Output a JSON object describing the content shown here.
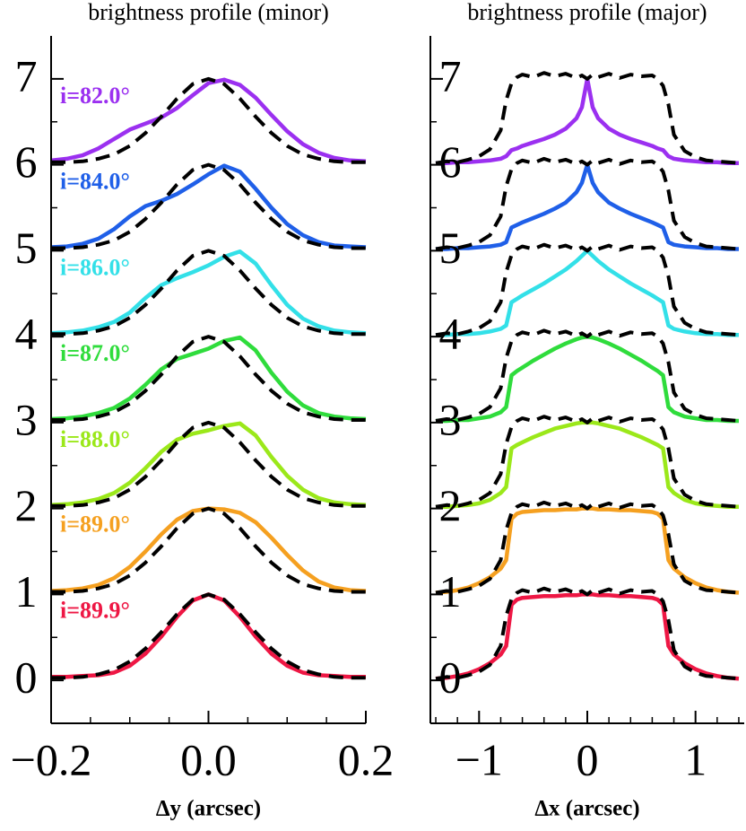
{
  "chart_data": [
    {
      "type": "line",
      "title": "brightness profile (minor)",
      "xlabel": "Δy (arcsec)",
      "xlim": [
        -0.2,
        0.2
      ],
      "ylim": [
        -0.5,
        7.5
      ],
      "xticks": [
        {
          "value": -0.2,
          "label": "−0.2"
        },
        {
          "value": 0,
          "label": "0.0"
        },
        0.2
      ],
      "xminorticks": [
        -0.15,
        -0.1,
        -0.05,
        0.05,
        0.1,
        0.15
      ],
      "yticks": [
        0,
        1,
        2,
        3,
        4,
        5,
        6,
        7
      ],
      "yminorticks": [
        0.5,
        1.5,
        2.5,
        3.5,
        4.5,
        5.5,
        6.5
      ],
      "x": [
        -0.2,
        -0.18,
        -0.16,
        -0.14,
        -0.12,
        -0.1,
        -0.08,
        -0.06,
        -0.04,
        -0.02,
        0,
        0.02,
        0.04,
        0.06,
        0.08,
        0.1,
        0.12,
        0.14,
        0.16,
        0.18,
        0.2
      ],
      "series": [
        {
          "name": "i=82.0°",
          "color": "#9b30f0",
          "values": [
            6.05,
            6.07,
            6.11,
            6.19,
            6.3,
            6.41,
            6.48,
            6.55,
            6.66,
            6.81,
            6.95,
            6.99,
            6.93,
            6.78,
            6.58,
            6.39,
            6.24,
            6.14,
            6.08,
            6.05,
            6.04
          ]
        },
        {
          "name": "i=84.0°",
          "color": "#1f5fe8",
          "values": [
            5.04,
            5.05,
            5.08,
            5.14,
            5.25,
            5.4,
            5.52,
            5.58,
            5.66,
            5.77,
            5.89,
            5.99,
            5.92,
            5.72,
            5.5,
            5.31,
            5.18,
            5.1,
            5.06,
            5.05,
            5.04
          ]
        },
        {
          "name": "i=86.0°",
          "color": "#33e0e8",
          "values": [
            4.04,
            4.05,
            4.07,
            4.11,
            4.17,
            4.28,
            4.45,
            4.6,
            4.68,
            4.75,
            4.83,
            4.93,
            4.99,
            4.85,
            4.6,
            4.37,
            4.21,
            4.12,
            4.07,
            4.05,
            4.04
          ]
        },
        {
          "name": "i=87.0°",
          "color": "#2fdc3c",
          "values": [
            3.04,
            3.05,
            3.07,
            3.11,
            3.17,
            3.28,
            3.44,
            3.62,
            3.74,
            3.8,
            3.86,
            3.95,
            3.99,
            3.84,
            3.58,
            3.36,
            3.2,
            3.11,
            3.07,
            3.05,
            3.04
          ]
        },
        {
          "name": "i=88.0°",
          "color": "#9be81a",
          "values": [
            2.04,
            2.05,
            2.07,
            2.11,
            2.18,
            2.3,
            2.47,
            2.66,
            2.8,
            2.87,
            2.91,
            2.96,
            2.99,
            2.85,
            2.6,
            2.38,
            2.22,
            2.12,
            2.07,
            2.05,
            2.04
          ]
        },
        {
          "name": "i=89.0°",
          "color": "#f5a020",
          "values": [
            1.04,
            1.05,
            1.07,
            1.11,
            1.19,
            1.32,
            1.5,
            1.7,
            1.87,
            1.97,
            2.0,
            1.99,
            1.95,
            1.84,
            1.66,
            1.46,
            1.28,
            1.15,
            1.08,
            1.05,
            1.04
          ]
        },
        {
          "name": "i=89.9°",
          "color": "#ee1744",
          "values": [
            0.04,
            0.04,
            0.05,
            0.06,
            0.09,
            0.17,
            0.31,
            0.51,
            0.74,
            0.93,
            1.0,
            0.93,
            0.74,
            0.51,
            0.31,
            0.17,
            0.09,
            0.06,
            0.05,
            0.04,
            0.04
          ]
        },
        {
          "color": "#000000",
          "dash": true,
          "values": [
            6.03,
            6.03,
            6.04,
            6.07,
            6.12,
            6.22,
            6.37,
            6.56,
            6.77,
            6.94,
            7.0,
            6.94,
            6.77,
            6.56,
            6.37,
            6.22,
            6.12,
            6.07,
            6.04,
            6.03,
            6.03
          ]
        },
        {
          "color": "#000000",
          "dash": true,
          "values": [
            5.03,
            5.03,
            5.04,
            5.07,
            5.12,
            5.22,
            5.37,
            5.56,
            5.77,
            5.94,
            6.0,
            5.94,
            5.77,
            5.56,
            5.37,
            5.22,
            5.12,
            5.07,
            5.04,
            5.03,
            5.03
          ]
        },
        {
          "color": "#000000",
          "dash": true,
          "values": [
            4.03,
            4.03,
            4.04,
            4.07,
            4.12,
            4.22,
            4.37,
            4.56,
            4.77,
            4.94,
            5.0,
            4.94,
            4.77,
            4.56,
            4.37,
            4.22,
            4.12,
            4.07,
            4.04,
            4.03,
            4.03
          ]
        },
        {
          "color": "#000000",
          "dash": true,
          "values": [
            3.03,
            3.03,
            3.04,
            3.07,
            3.12,
            3.22,
            3.37,
            3.56,
            3.77,
            3.94,
            4.0,
            3.94,
            3.77,
            3.56,
            3.37,
            3.22,
            3.12,
            3.07,
            3.04,
            3.03,
            3.03
          ]
        },
        {
          "color": "#000000",
          "dash": true,
          "values": [
            2.03,
            2.03,
            2.04,
            2.07,
            2.12,
            2.22,
            2.37,
            2.56,
            2.77,
            2.94,
            3.0,
            2.94,
            2.77,
            2.56,
            2.37,
            2.22,
            2.12,
            2.07,
            2.04,
            2.03,
            2.03
          ]
        },
        {
          "color": "#000000",
          "dash": true,
          "values": [
            1.03,
            1.03,
            1.04,
            1.07,
            1.12,
            1.22,
            1.37,
            1.56,
            1.77,
            1.94,
            2.0,
            1.94,
            1.77,
            1.56,
            1.37,
            1.22,
            1.12,
            1.07,
            1.04,
            1.03,
            1.03
          ]
        },
        {
          "color": "#000000",
          "dash": true,
          "values": [
            0.03,
            0.03,
            0.04,
            0.07,
            0.12,
            0.22,
            0.37,
            0.56,
            0.77,
            0.94,
            1.0,
            0.94,
            0.77,
            0.56,
            0.37,
            0.22,
            0.12,
            0.07,
            0.04,
            0.03,
            0.03
          ]
        }
      ]
    },
    {
      "type": "line",
      "title": "brightness profile (major)",
      "xlabel": "Δx (arcsec)",
      "xlim": [
        -1.45,
        1.45
      ],
      "ylim": [
        -0.5,
        7.5
      ],
      "xticks": [
        {
          "value": -1,
          "label": "−1"
        },
        0,
        1
      ],
      "xminorticks": [
        -1.4,
        -1.2,
        -0.8,
        -0.6,
        -0.4,
        -0.2,
        0.2,
        0.4,
        0.6,
        0.8,
        1.2,
        1.4
      ],
      "yticks": [
        0,
        1,
        2,
        3,
        4,
        5,
        6,
        7
      ],
      "yminorticks": [
        0.5,
        1.5,
        2.5,
        3.5,
        4.5,
        5.5,
        6.5
      ],
      "x": [
        -1.4,
        -1.3,
        -1.2,
        -1.1,
        -1.0,
        -0.9,
        -0.8,
        -0.75,
        -0.7,
        -0.65,
        -0.6,
        -0.5,
        -0.4,
        -0.3,
        -0.2,
        -0.1,
        -0.05,
        0,
        0.05,
        0.1,
        0.2,
        0.3,
        0.4,
        0.5,
        0.6,
        0.65,
        0.7,
        0.75,
        0.8,
        0.9,
        1.0,
        1.1,
        1.2,
        1.3,
        1.4
      ],
      "series": [
        {
          "color": "#9b30f0",
          "values": [
            6.02,
            6.02,
            6.03,
            6.03,
            6.04,
            6.05,
            6.07,
            6.1,
            6.17,
            6.19,
            6.22,
            6.26,
            6.3,
            6.35,
            6.42,
            6.54,
            6.67,
            7.0,
            6.67,
            6.54,
            6.42,
            6.35,
            6.3,
            6.26,
            6.22,
            6.19,
            6.17,
            6.1,
            6.07,
            6.05,
            6.04,
            6.03,
            6.03,
            6.02,
            6.02
          ]
        },
        {
          "color": "#1f5fe8",
          "values": [
            5.02,
            5.02,
            5.03,
            5.03,
            5.04,
            5.05,
            5.07,
            5.1,
            5.27,
            5.3,
            5.33,
            5.38,
            5.43,
            5.49,
            5.56,
            5.68,
            5.79,
            6.0,
            5.79,
            5.68,
            5.56,
            5.49,
            5.43,
            5.38,
            5.33,
            5.3,
            5.27,
            5.1,
            5.07,
            5.05,
            5.04,
            5.03,
            5.03,
            5.02,
            5.02
          ]
        },
        {
          "color": "#33e0e8",
          "values": [
            4.02,
            4.02,
            4.03,
            4.03,
            4.04,
            4.06,
            4.09,
            4.13,
            4.4,
            4.44,
            4.48,
            4.55,
            4.62,
            4.7,
            4.78,
            4.88,
            4.94,
            5.0,
            4.94,
            4.88,
            4.78,
            4.7,
            4.62,
            4.55,
            4.48,
            4.44,
            4.4,
            4.13,
            4.09,
            4.06,
            4.04,
            4.03,
            4.03,
            4.02,
            4.02
          ]
        },
        {
          "color": "#2fdc3c",
          "values": [
            3.02,
            3.02,
            3.03,
            3.03,
            3.05,
            3.07,
            3.12,
            3.18,
            3.55,
            3.6,
            3.64,
            3.72,
            3.79,
            3.86,
            3.92,
            3.97,
            3.99,
            4.0,
            3.99,
            3.97,
            3.92,
            3.86,
            3.79,
            3.72,
            3.64,
            3.6,
            3.55,
            3.18,
            3.12,
            3.07,
            3.05,
            3.03,
            3.03,
            3.02,
            3.02
          ]
        },
        {
          "color": "#9be81a",
          "values": [
            2.02,
            2.02,
            2.03,
            2.04,
            2.06,
            2.1,
            2.18,
            2.25,
            2.7,
            2.74,
            2.77,
            2.83,
            2.88,
            2.93,
            2.96,
            2.99,
            3.0,
            3.0,
            3.0,
            2.99,
            2.96,
            2.93,
            2.88,
            2.83,
            2.77,
            2.74,
            2.7,
            2.25,
            2.18,
            2.1,
            2.06,
            2.04,
            2.03,
            2.02,
            2.02
          ]
        },
        {
          "color": "#f5a020",
          "values": [
            1.02,
            1.03,
            1.05,
            1.08,
            1.13,
            1.2,
            1.3,
            1.4,
            1.88,
            1.94,
            1.96,
            1.97,
            1.98,
            1.98,
            1.99,
            1.99,
            2.0,
            2.0,
            2.0,
            1.99,
            1.99,
            1.98,
            1.98,
            1.97,
            1.96,
            1.94,
            1.88,
            1.4,
            1.3,
            1.2,
            1.13,
            1.08,
            1.05,
            1.03,
            1.02
          ]
        },
        {
          "color": "#ee1744",
          "values": [
            0.02,
            0.03,
            0.05,
            0.08,
            0.13,
            0.2,
            0.3,
            0.4,
            0.88,
            0.94,
            0.96,
            0.97,
            0.98,
            0.98,
            0.99,
            0.99,
            1.0,
            1.0,
            1.0,
            0.99,
            0.99,
            0.98,
            0.98,
            0.97,
            0.96,
            0.94,
            0.88,
            0.4,
            0.3,
            0.2,
            0.13,
            0.08,
            0.05,
            0.03,
            0.02
          ]
        },
        {
          "color": "#000000",
          "dash": true,
          "values": [
            6.02,
            6.04,
            6.03,
            6.06,
            6.1,
            6.18,
            6.4,
            6.75,
            6.95,
            7.02,
            7.05,
            7.02,
            7.07,
            7.03,
            7.06,
            7.01,
            7.04,
            7.0,
            7.05,
            7.02,
            7.06,
            7.01,
            7.05,
            7.03,
            7.04,
            7.0,
            6.92,
            6.7,
            6.35,
            6.16,
            6.09,
            6.05,
            6.04,
            6.03,
            6.02
          ]
        },
        {
          "color": "#000000",
          "dash": true,
          "values": [
            5.02,
            5.04,
            5.03,
            5.06,
            5.1,
            5.18,
            5.4,
            5.75,
            5.95,
            6.02,
            6.05,
            6.02,
            6.07,
            6.03,
            6.06,
            6.01,
            6.04,
            6.0,
            6.05,
            6.02,
            6.06,
            6.01,
            6.05,
            6.03,
            6.04,
            6.0,
            5.92,
            5.7,
            5.35,
            5.16,
            5.09,
            5.05,
            5.04,
            5.03,
            5.02
          ]
        },
        {
          "color": "#000000",
          "dash": true,
          "values": [
            4.02,
            4.04,
            4.03,
            4.06,
            4.1,
            4.18,
            4.4,
            4.75,
            4.95,
            5.02,
            5.05,
            5.02,
            5.07,
            5.03,
            5.06,
            5.01,
            5.04,
            5.0,
            5.05,
            5.02,
            5.06,
            5.01,
            5.05,
            5.03,
            5.04,
            5.0,
            4.92,
            4.7,
            4.35,
            4.16,
            4.09,
            4.05,
            4.04,
            4.03,
            4.02
          ]
        },
        {
          "color": "#000000",
          "dash": true,
          "values": [
            3.02,
            3.04,
            3.03,
            3.06,
            3.1,
            3.18,
            3.4,
            3.75,
            3.95,
            4.02,
            4.05,
            4.02,
            4.07,
            4.03,
            4.06,
            4.01,
            4.04,
            4.0,
            4.05,
            4.02,
            4.06,
            4.01,
            4.05,
            4.03,
            4.04,
            4.0,
            3.92,
            3.7,
            3.35,
            3.16,
            3.09,
            3.05,
            3.04,
            3.03,
            3.02
          ]
        },
        {
          "color": "#000000",
          "dash": true,
          "values": [
            2.02,
            2.04,
            2.03,
            2.06,
            2.1,
            2.18,
            2.4,
            2.75,
            2.95,
            3.02,
            3.05,
            3.02,
            3.07,
            3.03,
            3.06,
            3.01,
            3.04,
            3.0,
            3.05,
            3.02,
            3.06,
            3.01,
            3.05,
            3.03,
            3.04,
            3.0,
            2.92,
            2.7,
            2.35,
            2.16,
            2.09,
            2.05,
            2.04,
            2.03,
            2.02
          ]
        },
        {
          "color": "#000000",
          "dash": true,
          "values": [
            1.02,
            1.04,
            1.03,
            1.06,
            1.1,
            1.18,
            1.4,
            1.75,
            1.95,
            2.02,
            2.05,
            2.02,
            2.07,
            2.03,
            2.06,
            2.01,
            2.04,
            2.0,
            2.05,
            2.02,
            2.06,
            2.01,
            2.05,
            2.03,
            2.04,
            2.0,
            1.92,
            1.7,
            1.35,
            1.16,
            1.09,
            1.05,
            1.04,
            1.03,
            1.02
          ]
        },
        {
          "color": "#000000",
          "dash": true,
          "values": [
            0.02,
            0.04,
            0.03,
            0.06,
            0.1,
            0.18,
            0.4,
            0.75,
            0.95,
            1.02,
            1.05,
            1.02,
            1.07,
            1.03,
            1.06,
            1.01,
            1.04,
            1.0,
            1.05,
            1.02,
            1.06,
            1.01,
            1.05,
            1.03,
            1.04,
            1.0,
            0.92,
            0.7,
            0.35,
            0.16,
            0.09,
            0.05,
            0.04,
            0.03,
            0.02
          ]
        }
      ]
    }
  ]
}
